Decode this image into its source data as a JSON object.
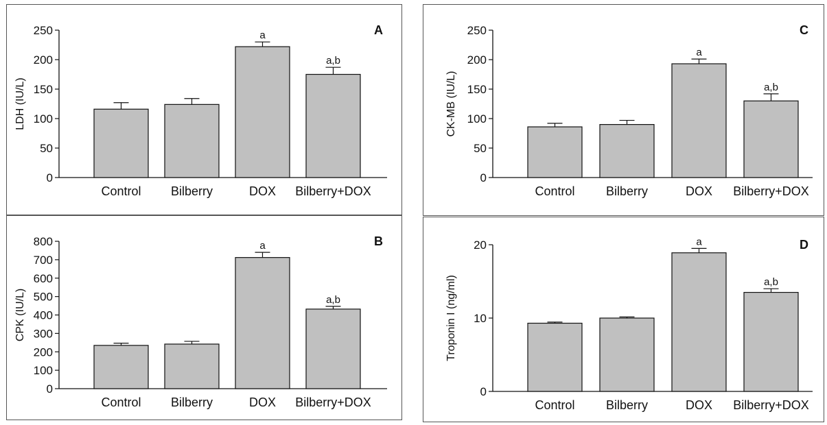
{
  "chart_data": [
    {
      "type": "bar",
      "panel": "A",
      "ylabel": "LDH (IU/L)",
      "categories": [
        "Control",
        "Bilberry",
        "DOX",
        "Bilberry+DOX"
      ],
      "values": [
        116,
        124,
        222,
        175
      ],
      "errors": [
        11,
        10,
        8,
        12
      ],
      "annotations": [
        "",
        "",
        "a",
        "a,b"
      ],
      "ylim": [
        0,
        250
      ],
      "yticks": [
        0,
        50,
        100,
        150,
        200,
        250
      ],
      "bar_color": "#c0c0c0"
    },
    {
      "type": "bar",
      "panel": "B",
      "ylabel": "CPK (IU/L)",
      "categories": [
        "Control",
        "Bilberry",
        "DOX",
        "Bilberry+DOX"
      ],
      "values": [
        235,
        242,
        712,
        432
      ],
      "errors": [
        12,
        15,
        28,
        15
      ],
      "annotations": [
        "",
        "",
        "a",
        "a,b"
      ],
      "ylim": [
        0,
        800
      ],
      "yticks": [
        0,
        100,
        200,
        300,
        400,
        500,
        600,
        700,
        800
      ],
      "bar_color": "#c0c0c0"
    },
    {
      "type": "bar",
      "panel": "C",
      "ylabel": "CK-MB (IU/L)",
      "categories": [
        "Control",
        "Bilberry",
        "DOX",
        "Bilberry+DOX"
      ],
      "values": [
        86,
        90,
        193,
        130
      ],
      "errors": [
        6,
        7,
        8,
        12
      ],
      "annotations": [
        "",
        "",
        "a",
        "a,b"
      ],
      "ylim": [
        0,
        250
      ],
      "yticks": [
        0,
        50,
        100,
        150,
        200,
        250
      ],
      "bar_color": "#c0c0c0"
    },
    {
      "type": "bar",
      "panel": "D",
      "ylabel": "Troponin I (ng/ml)",
      "categories": [
        "Control",
        "Bilberry",
        "DOX",
        "Bilberry+DOX"
      ],
      "values": [
        9.3,
        10.0,
        18.9,
        13.5
      ],
      "errors": [
        0.15,
        0.15,
        0.6,
        0.5
      ],
      "annotations": [
        "",
        "",
        "a",
        "a,b"
      ],
      "ylim": [
        0,
        20
      ],
      "yticks": [
        0,
        10,
        20
      ],
      "bar_color": "#c0c0c0"
    }
  ]
}
